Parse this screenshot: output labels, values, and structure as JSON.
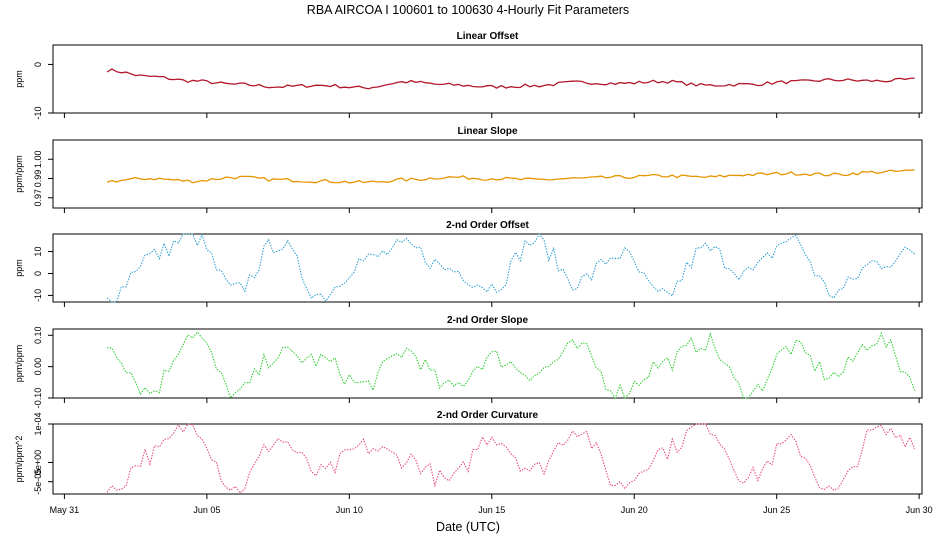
{
  "title": "RBA   AIRCOA I   100601 to 100630   4-Hourly Fit Parameters",
  "xlabel": "Date (UTC)",
  "x_axis": {
    "range_days": [
      30.6,
      61.1
    ],
    "ticks": [
      {
        "value": 31,
        "label": "May 31"
      },
      {
        "value": 36,
        "label": "Jun 05"
      },
      {
        "value": 41,
        "label": "Jun 10"
      },
      {
        "value": 46,
        "label": "Jun 15"
      },
      {
        "value": 51,
        "label": "Jun 20"
      },
      {
        "value": 56,
        "label": "Jun 25"
      },
      {
        "value": 61,
        "label": "Jun 30"
      }
    ],
    "data_start_day": 32.5,
    "data_end_day": 61.0,
    "sample_step_days": 0.1667
  },
  "chart_data": [
    {
      "type": "line",
      "title": "Linear Offset",
      "ylabel": "ppm",
      "ylim": [
        -10,
        4
      ],
      "yticks": [
        {
          "value": 0,
          "label": "0"
        },
        {
          "value": -10,
          "label": "-10"
        }
      ],
      "color": "#b2182b",
      "style": "solid",
      "series": [
        {
          "name": "Linear Offset",
          "x_days": [
            32.5,
            34,
            35.5,
            37,
            38.5,
            40,
            41.5,
            43,
            44.5,
            46,
            47.5,
            49,
            50.5,
            52,
            53.5,
            55,
            56.5,
            58,
            59.5,
            61
          ],
          "values": [
            -1.2,
            -2.5,
            -3.4,
            -4.1,
            -4.6,
            -4.3,
            -4.8,
            -3.6,
            -4.2,
            -4.6,
            -4.4,
            -3.7,
            -3.9,
            -3.5,
            -4.3,
            -4.1,
            -3.6,
            -3.2,
            -3.4,
            -3.1
          ]
        }
      ]
    },
    {
      "type": "line",
      "title": "Linear Slope",
      "ylabel": "ppm/ppm",
      "ylim": [
        0.962,
        1.015
      ],
      "yticks": [
        {
          "value": 1.0,
          "label": "1.00"
        },
        {
          "value": 0.985,
          "label": "0.99"
        },
        {
          "value": 0.97,
          "label": "0.97"
        }
      ],
      "color": "#e69500",
      "style": "solid",
      "series": [
        {
          "name": "Linear Slope",
          "x_days": [
            32.5,
            34,
            35.5,
            37,
            38.5,
            40,
            41.5,
            43,
            44.5,
            46,
            47.5,
            49,
            50.5,
            52,
            53.5,
            55,
            56.5,
            58,
            59.5,
            61
          ],
          "values": [
            0.983,
            0.985,
            0.983,
            0.986,
            0.984,
            0.983,
            0.982,
            0.984,
            0.986,
            0.985,
            0.984,
            0.985,
            0.986,
            0.987,
            0.986,
            0.988,
            0.989,
            0.988,
            0.99,
            0.991
          ]
        }
      ]
    },
    {
      "type": "line",
      "title": "2-nd Order Offset",
      "ylabel": "ppm",
      "ylim": [
        -13,
        18
      ],
      "yticks": [
        {
          "value": 10,
          "label": "10"
        },
        {
          "value": 0,
          "label": "0"
        },
        {
          "value": -10,
          "label": "-10"
        }
      ],
      "color": "#2c9fd0",
      "style": "dotted",
      "series": [
        {
          "name": "2-nd Order Offset",
          "x_days": [
            32.5,
            34,
            35.5,
            37,
            38.5,
            40,
            41.5,
            43,
            44.5,
            46,
            47.5,
            49,
            50.5,
            52,
            53.5,
            55,
            56.5,
            58,
            59.5,
            61
          ],
          "values": [
            -12,
            8,
            17,
            -8,
            14,
            -10,
            6,
            12,
            2,
            -6,
            15,
            -4,
            9,
            -11,
            11,
            0,
            16,
            -9,
            5,
            10
          ]
        }
      ]
    },
    {
      "type": "line",
      "title": "2-nd Order Slope",
      "ylabel": "ppm/ppm",
      "ylim": [
        -0.1,
        0.12
      ],
      "yticks": [
        {
          "value": 0.1,
          "label": "0.10"
        },
        {
          "value": 0.0,
          "label": "0.00"
        },
        {
          "value": -0.1,
          "label": "-0.10"
        }
      ],
      "color": "#2ecc2e",
      "style": "dotted",
      "series": [
        {
          "name": "2-nd Order Slope",
          "x_days": [
            32.5,
            34,
            35.5,
            37,
            38.5,
            40,
            41.5,
            43,
            44.5,
            46,
            47.5,
            49,
            50.5,
            52,
            53.5,
            55,
            56.5,
            58,
            59.5,
            61
          ],
          "values": [
            0.07,
            -0.08,
            0.11,
            -0.09,
            0.04,
            0.02,
            -0.06,
            0.05,
            -0.07,
            0.03,
            -0.02,
            0.06,
            -0.08,
            0.01,
            0.08,
            -0.09,
            0.06,
            -0.03,
            0.09,
            -0.05
          ]
        }
      ]
    },
    {
      "type": "line",
      "title": "2-nd Order Curvature",
      "ylabel": "ppm/ppm^2",
      "ylim": [
        -8.2e-05,
        0.0001
      ],
      "yticks": [
        {
          "value": 0.0001,
          "label": "1e-04"
        },
        {
          "value": 0.0,
          "label": "0e+00"
        },
        {
          "value": -5e-05,
          "label": "-5e-05"
        }
      ],
      "color": "#e8487a",
      "style": "dotted",
      "series": [
        {
          "name": "2-nd Order Curvature",
          "x_days": [
            32.5,
            34,
            35.5,
            37,
            38.5,
            40,
            41.5,
            43,
            44.5,
            46,
            47.5,
            49,
            50.5,
            52,
            53.5,
            55,
            56.5,
            58,
            59.5,
            61
          ],
          "values": [
            -8e-05,
            2e-05,
            0.0001,
            -7e-05,
            6e-05,
            -3e-05,
            4e-05,
            1e-05,
            -5e-05,
            7e-05,
            -2e-05,
            9e-05,
            -6e-05,
            3e-05,
            0.0001,
            -4e-05,
            5e-05,
            -8e-05,
            8e-05,
            6e-05
          ]
        }
      ]
    }
  ]
}
